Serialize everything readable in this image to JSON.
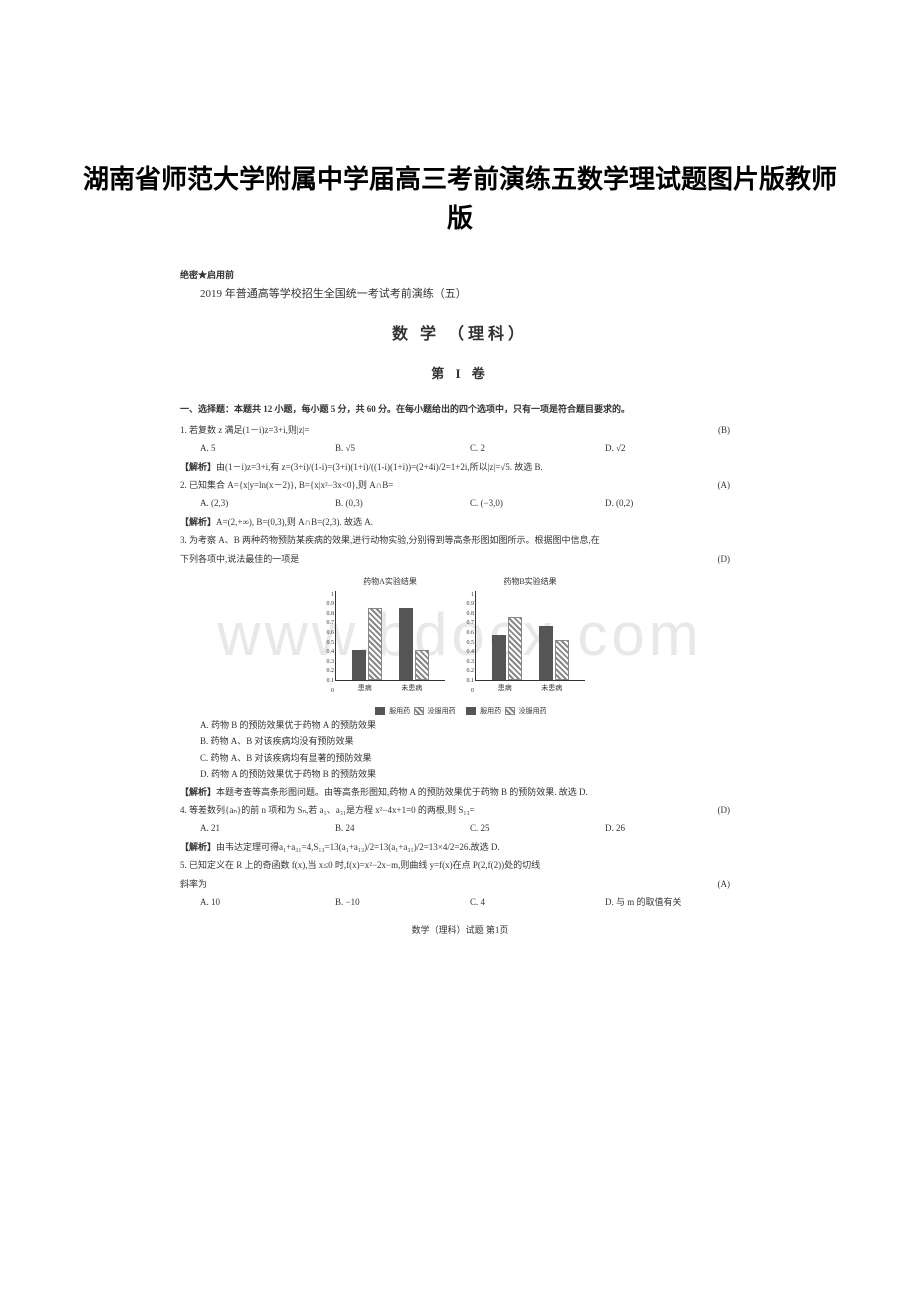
{
  "page_title": "湖南省师范大学附属中学届高三考前演练五数学理试题图片版教师版",
  "confidential": "绝密★启用前",
  "exam_line": "2019 年普通高等学校招生全国统一考试考前演练（五）",
  "subject_title": "数 学 （理科）",
  "volume_title": "第 I 卷",
  "section_header": "一、选择题：本题共 12 小题，每小题 5 分，共 60 分。在每小题给出的四个选项中，只有一项是符合题目要求的。",
  "q1": {
    "text": "1. 若复数 z 满足(1－i)z=3+i,则|z|=",
    "answer": "(B)",
    "options": {
      "A": "A. 5",
      "B": "B. √5",
      "C": "C. 2",
      "D": "D. √2"
    },
    "explanation_label": "【解析】",
    "explanation": "由(1－i)z=3+i,有 z=(3+i)/(1-i)=(3+i)(1+i)/((1-i)(1+i))=(2+4i)/2=1+2i,所以|z|=√5. 故选 B."
  },
  "q2": {
    "text": "2. 已知集合 A={x|y=ln(x－2)}, B={x|x²−3x<0},则 A∩B=",
    "answer": "(A)",
    "options": {
      "A": "A. (2,3)",
      "B": "B. (0,3)",
      "C": "C. (−3,0)",
      "D": "D. (0,2)"
    },
    "explanation_label": "【解析】",
    "explanation": "A=(2,+∞), B=(0,3),则 A∩B=(2,3). 故选 A."
  },
  "q3": {
    "text": "3. 为考察 A、B 两种药物预防某疾病的效果,进行动物实验,分别得到等高条形图如图所示。根据图中信息,在",
    "text2": "下列各项中,说法最佳的一项是",
    "answer": "(D)",
    "chart_a_title": "药物A实验结果",
    "chart_b_title": "药物B实验结果",
    "x_label_1": "患病",
    "x_label_2": "未患病",
    "legend_1": "服用药",
    "legend_2": "没服用药",
    "y_ticks": [
      "1",
      "0.9",
      "0.8",
      "0.7",
      "0.6",
      "0.5",
      "0.4",
      "0.3",
      "0.2",
      "0.1",
      "0"
    ],
    "chart_a": {
      "group1": {
        "solid": 30,
        "hatched": 72
      },
      "group2": {
        "solid": 72,
        "hatched": 30
      }
    },
    "chart_b": {
      "group1": {
        "solid": 45,
        "hatched": 63
      },
      "group2": {
        "solid": 54,
        "hatched": 40
      }
    },
    "sub_options": {
      "A": "A. 药物 B 的预防效果优于药物 A 的预防效果",
      "B": "B. 药物 A、B 对该疾病均没有预防效果",
      "C": "C. 药物 A、B 对该疾病均有显著的预防效果",
      "D": "D. 药物 A 的预防效果优于药物 B 的预防效果"
    },
    "explanation_label": "【解析】",
    "explanation": "本题考查等高条形图问题。由等高条形图知,药物 A 的预防效果优于药物 B 的预防效果. 故选 D."
  },
  "q4": {
    "text": "4. 等差数列{aₙ}的前 n 项和为 Sₙ,若 a₁、a₃₁是方程 x²−4x+1=0 的两根,则 S₁₃=",
    "answer": "(D)",
    "options": {
      "A": "A. 21",
      "B": "B. 24",
      "C": "C. 25",
      "D": "D. 26"
    },
    "explanation_label": "【解析】",
    "explanation": "由韦达定理可得a₁+a₃₁=4,S₁₃=13(a₁+a₁₃)/2=13(a₁+a₃₁)/2=13×4/2=26.故选 D."
  },
  "q5": {
    "text": "5. 已知定义在 R 上的奇函数 f(x),当 x≤0 时,f(x)=x²−2x−m,则曲线 y=f(x)在点 P(2,f(2))处的切线",
    "text2": "斜率为",
    "answer": "(A)",
    "options": {
      "A": "A. 10",
      "B": "B. −10",
      "C": "C. 4",
      "D": "D. 与 m 的取值有关"
    }
  },
  "footer": "数学（理科）试题 第1页",
  "watermark": "www.bdocx.com",
  "colors": {
    "bar_solid": "#555555",
    "bar_hatched_1": "#ffffff",
    "bar_hatched_2": "#888888",
    "text": "#333333",
    "watermark": "#e8e8e8",
    "background": "#ffffff"
  }
}
